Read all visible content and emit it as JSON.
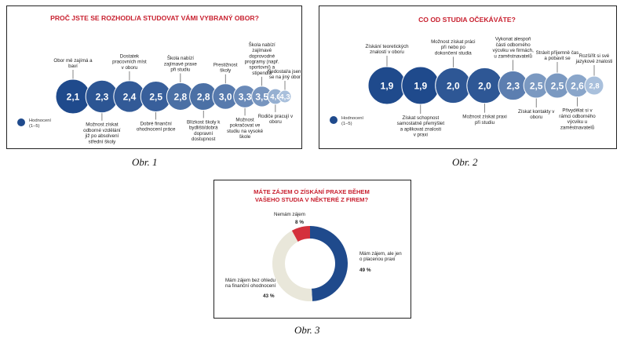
{
  "captions": [
    "Obr. 1",
    "Obr. 2",
    "Obr. 3"
  ],
  "colors": {
    "dark_blue": "#1f4a8c",
    "light_blue": "#a9c0dc",
    "red_title": "#c8202f",
    "beige": "#e9e7da",
    "red_slice": "#d4303c"
  },
  "chart_data": [
    {
      "type": "scatter",
      "title": "PROČ JSTE SE ROZHODL/A STUDOVAT VÁMI VYBRANÝ OBOR?",
      "legend": "Hodnocení (1–5)",
      "points": [
        {
          "value": 2.1,
          "label": "2,1",
          "name": "Obor mě zajímá a baví"
        },
        {
          "value": 2.3,
          "label": "2,3",
          "name": "Možnost získat odborné vzdělání již po absolvení střední školy"
        },
        {
          "value": 2.4,
          "label": "2,4",
          "name": "Dostatek pracovních míst v oboru"
        },
        {
          "value": 2.5,
          "label": "2,5",
          "name": "Dobré finanční ohodnocení práce"
        },
        {
          "value": 2.8,
          "label": "2,8",
          "name": "Škola nabízí zajímavé praxe při studiu"
        },
        {
          "value": 2.8,
          "label": "2,8",
          "name": "Blízkost školy k bydlišti/dobrá dopravní dostupnost"
        },
        {
          "value": 3.0,
          "label": "3,0",
          "name": "Prestižnost školy"
        },
        {
          "value": 3.3,
          "label": "3,3",
          "name": "Možnost pokračovat ve studiu na vysoké škole"
        },
        {
          "value": 3.5,
          "label": "3,5",
          "name": "Škola nabízí zajímavé doprovodné programy (např. sportovní) a stipendia"
        },
        {
          "value": 4.0,
          "label": "4,0",
          "name": "Rodiče pracují v oboru"
        },
        {
          "value": 4.3,
          "label": "4,3",
          "name": "Nedostal/a jsem se na jiný obor"
        }
      ]
    },
    {
      "type": "scatter",
      "title": "CO OD STUDIA OČEKÁVÁTE?",
      "legend": "Hodnocení (1–5)",
      "points": [
        {
          "value": 1.9,
          "label": "1,9",
          "name": "Získání teoretických znalostí v oboru"
        },
        {
          "value": 1.9,
          "label": "1,9",
          "name": "Získat schopnost samostatně přemýšlet a aplikovat znalosti v praxi"
        },
        {
          "value": 2.0,
          "label": "2,0",
          "name": "Možnost získat práci při nebo po dokončení studia"
        },
        {
          "value": 2.0,
          "label": "2,0",
          "name": "Možnost získat praxi při studiu"
        },
        {
          "value": 2.3,
          "label": "2,3",
          "name": "Vykonat alespoň části odborného výcviku ve firmách, u zaměstnavatelů"
        },
        {
          "value": 2.5,
          "label": "2,5",
          "name": "Získat kontakty v oboru"
        },
        {
          "value": 2.5,
          "label": "2,5",
          "name": "Strávit příjemně čas a pobavit se"
        },
        {
          "value": 2.6,
          "label": "2,6",
          "name": "Přivydělat si v rámci odborného výcviku u zaměstnavatelů"
        },
        {
          "value": 2.8,
          "label": "2,8",
          "name": "Rozšířit si své jazykové znalosti"
        }
      ]
    },
    {
      "type": "pie",
      "title_lines": [
        "MÁTE ZÁJEM O ZÍSKÁNÍ PRAXE BĚHEM",
        "VAŠEHO STUDIA V NĚKTERÉ Z FIREM?"
      ],
      "slices": [
        {
          "label": "Mám zájem, ale jen o placenou praxi",
          "value": 49,
          "value_label": "49 %",
          "color": "#1f4a8c"
        },
        {
          "label": "Mám zájem bez ohledu na finanční ohodnocení",
          "value": 43,
          "value_label": "43 %",
          "color": "#e9e7da"
        },
        {
          "label": "Nemám zájem",
          "value": 8,
          "value_label": "8 %",
          "color": "#d4303c"
        }
      ]
    }
  ]
}
